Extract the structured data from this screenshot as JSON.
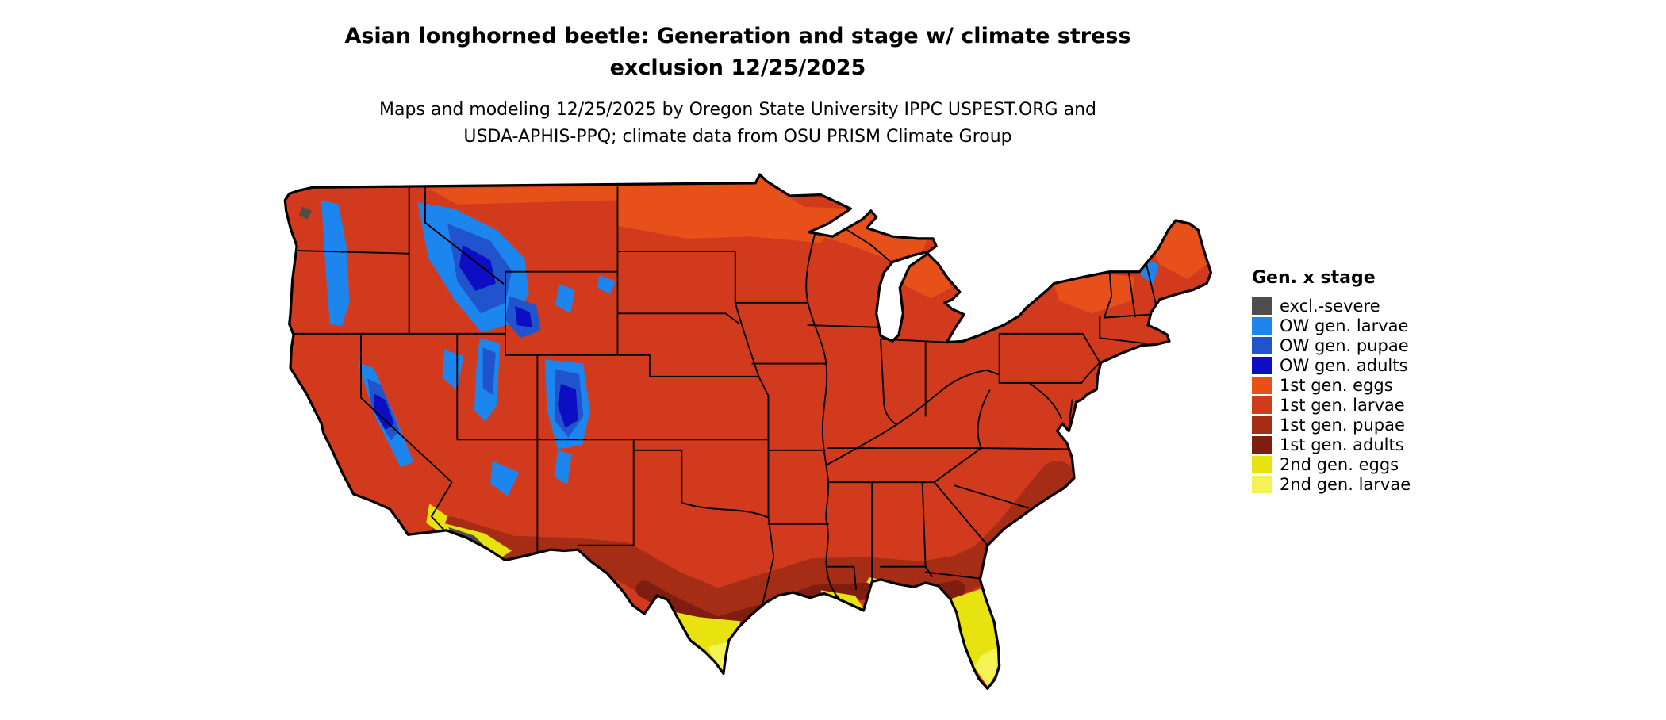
{
  "title": {
    "line1": "Asian longhorned beetle: Generation and stage w/ climate stress",
    "line2": "exclusion 12/25/2025"
  },
  "subtitle": {
    "line1": "Maps and modeling 12/25/2025 by Oregon State University IPPC USPEST.ORG and",
    "line2": "USDA-APHIS-PPQ; climate data from OSU PRISM Climate Group"
  },
  "legend": {
    "title": "Gen. x stage",
    "items": [
      {
        "key": "excl_severe",
        "label": "excl.-severe",
        "color": "#4d4d4d"
      },
      {
        "key": "ow_larvae",
        "label": "OW gen. larvae",
        "color": "#1c86ee"
      },
      {
        "key": "ow_pupae",
        "label": "OW gen. pupae",
        "color": "#2153cc"
      },
      {
        "key": "ow_adults",
        "label": "OW gen. adults",
        "color": "#0d0dc4"
      },
      {
        "key": "gen1_eggs",
        "label": "1st gen. eggs",
        "color": "#e8501a"
      },
      {
        "key": "gen1_larvae",
        "label": "1st gen. larvae",
        "color": "#d23a1e"
      },
      {
        "key": "gen1_pupae",
        "label": "1st gen. pupae",
        "color": "#a52d15"
      },
      {
        "key": "gen1_adults",
        "label": "1st gen. adults",
        "color": "#7e1d10"
      },
      {
        "key": "gen2_eggs",
        "label": "2nd gen. eggs",
        "color": "#e9e211"
      },
      {
        "key": "gen2_larvae",
        "label": "2nd gen. larvae",
        "color": "#f3f356"
      }
    ]
  },
  "map": {
    "region_label": "Contiguous United States",
    "date_shown": "12/25/2025"
  }
}
